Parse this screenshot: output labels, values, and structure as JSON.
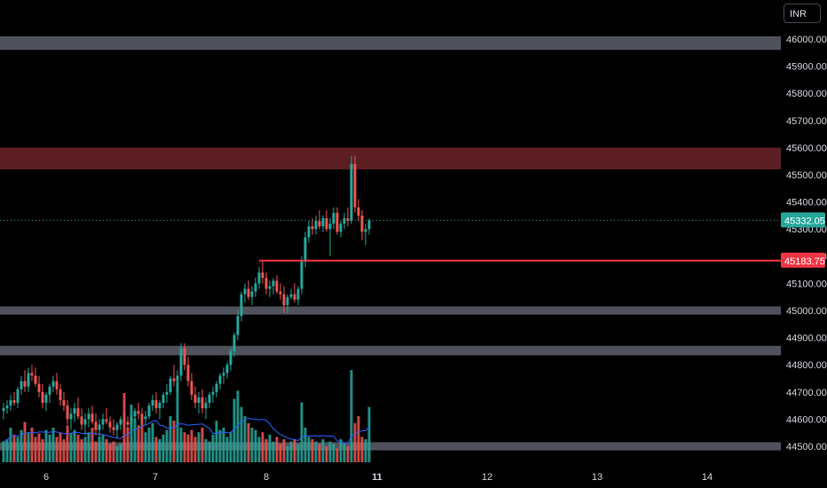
{
  "currency_button": "INR",
  "colors": {
    "background": "#000000",
    "up": "#26a69a",
    "down": "#ef5350",
    "volume_up": "#26a69a",
    "volume_down": "#ef5350",
    "ma_line": "#2962ff",
    "zone_grey": "#5d606b",
    "zone_red": "#5c1e22",
    "level_line": "#f23645",
    "axis_text": "#d1d4dc"
  },
  "chart_data": {
    "type": "candlestick",
    "ylim": [
      44450,
      46060
    ],
    "y_ticks": [
      "46000.00",
      "45900.00",
      "45800.00",
      "45700.00",
      "45600.00",
      "45500.00",
      "45400.00",
      "45300.00",
      "45200.00",
      "45100.00",
      "45000.00",
      "44900.00",
      "44800.00",
      "44700.00",
      "44600.00",
      "44500.00"
    ],
    "x_ticks": [
      "6",
      "7",
      "8",
      "11",
      "12",
      "13",
      "14"
    ],
    "last_price": "45332.05",
    "level_price": "45183.75",
    "zones": [
      {
        "color": "grey",
        "from": 45960,
        "to": 46010
      },
      {
        "color": "red",
        "from": 45520,
        "to": 45600
      },
      {
        "color": "grey",
        "from": 44985,
        "to": 45015
      },
      {
        "color": "grey",
        "from": 44835,
        "to": 44870
      },
      {
        "color": "grey",
        "from": 44485,
        "to": 44515
      }
    ],
    "level_line": {
      "price": 45183.75,
      "start_index": 72
    },
    "candles": [
      [
        44630,
        44660,
        44600,
        44640
      ],
      [
        44640,
        44670,
        44620,
        44650
      ],
      [
        44650,
        44690,
        44630,
        44670
      ],
      [
        44670,
        44700,
        44650,
        44660
      ],
      [
        44660,
        44720,
        44640,
        44710
      ],
      [
        44710,
        44760,
        44690,
        44740
      ],
      [
        44740,
        44780,
        44700,
        44720
      ],
      [
        44720,
        44790,
        44700,
        44770
      ],
      [
        44770,
        44800,
        44740,
        44760
      ],
      [
        44760,
        44790,
        44720,
        44730
      ],
      [
        44730,
        44760,
        44680,
        44700
      ],
      [
        44700,
        44730,
        44640,
        44660
      ],
      [
        44660,
        44700,
        44630,
        44690
      ],
      [
        44690,
        44730,
        44660,
        44720
      ],
      [
        44720,
        44760,
        44700,
        44740
      ],
      [
        44740,
        44770,
        44690,
        44710
      ],
      [
        44710,
        44730,
        44650,
        44670
      ],
      [
        44670,
        44700,
        44630,
        44650
      ],
      [
        44650,
        44670,
        44580,
        44600
      ],
      [
        44600,
        44640,
        44560,
        44620
      ],
      [
        44620,
        44660,
        44590,
        44640
      ],
      [
        44640,
        44680,
        44600,
        44610
      ],
      [
        44610,
        44640,
        44560,
        44580
      ],
      [
        44580,
        44620,
        44540,
        44600
      ],
      [
        44600,
        44640,
        44570,
        44620
      ],
      [
        44620,
        44650,
        44580,
        44590
      ],
      [
        44590,
        44620,
        44540,
        44560
      ],
      [
        44560,
        44600,
        44530,
        44580
      ],
      [
        44580,
        44620,
        44560,
        44600
      ],
      [
        44600,
        44640,
        44580,
        44590
      ],
      [
        44590,
        44610,
        44550,
        44570
      ],
      [
        44570,
        44600,
        44540,
        44560
      ],
      [
        44560,
        44590,
        44530,
        44580
      ],
      [
        44580,
        44610,
        44560,
        44600
      ],
      [
        44600,
        44620,
        44570,
        44590
      ],
      [
        44590,
        44610,
        44560,
        44580
      ],
      [
        44580,
        44620,
        44560,
        44610
      ],
      [
        44610,
        44640,
        44590,
        44630
      ],
      [
        44630,
        44660,
        44600,
        44620
      ],
      [
        44620,
        44640,
        44580,
        44600
      ],
      [
        44600,
        44630,
        44580,
        44610
      ],
      [
        44610,
        44660,
        44600,
        44650
      ],
      [
        44650,
        44690,
        44630,
        44670
      ],
      [
        44670,
        44700,
        44620,
        44640
      ],
      [
        44640,
        44670,
        44600,
        44660
      ],
      [
        44660,
        44700,
        44640,
        44690
      ],
      [
        44690,
        44730,
        44660,
        44700
      ],
      [
        44700,
        44760,
        44690,
        44750
      ],
      [
        44750,
        44800,
        44720,
        44740
      ],
      [
        44740,
        44780,
        44700,
        44760
      ],
      [
        44760,
        44880,
        44740,
        44860
      ],
      [
        44860,
        44880,
        44780,
        44800
      ],
      [
        44800,
        44830,
        44720,
        44740
      ],
      [
        44740,
        44770,
        44670,
        44690
      ],
      [
        44690,
        44720,
        44640,
        44660
      ],
      [
        44660,
        44700,
        44620,
        44680
      ],
      [
        44680,
        44710,
        44620,
        44640
      ],
      [
        44640,
        44680,
        44600,
        44660
      ],
      [
        44660,
        44700,
        44640,
        44690
      ],
      [
        44690,
        44720,
        44660,
        44700
      ],
      [
        44700,
        44740,
        44680,
        44730
      ],
      [
        44730,
        44770,
        44710,
        44760
      ],
      [
        44760,
        44790,
        44730,
        44770
      ],
      [
        44770,
        44810,
        44750,
        44800
      ],
      [
        44800,
        44860,
        44780,
        44850
      ],
      [
        44850,
        44920,
        44830,
        44910
      ],
      [
        44910,
        45000,
        44890,
        44980
      ],
      [
        44980,
        45070,
        44960,
        45060
      ],
      [
        45060,
        45100,
        45030,
        45080
      ],
      [
        45080,
        45110,
        45040,
        45050
      ],
      [
        45050,
        45090,
        45020,
        45070
      ],
      [
        45070,
        45120,
        45050,
        45100
      ],
      [
        45100,
        45160,
        45080,
        45140
      ],
      [
        45140,
        45180,
        45100,
        45120
      ],
      [
        45120,
        45140,
        45060,
        45080
      ],
      [
        45080,
        45110,
        45050,
        45090
      ],
      [
        45090,
        45120,
        45060,
        45110
      ],
      [
        45110,
        45130,
        45060,
        45070
      ],
      [
        45070,
        45100,
        45040,
        45060
      ],
      [
        45060,
        45090,
        44990,
        45020
      ],
      [
        45020,
        45060,
        44990,
        45050
      ],
      [
        45050,
        45080,
        45040,
        45060
      ],
      [
        45060,
        45100,
        45030,
        45040
      ],
      [
        45040,
        45090,
        45020,
        45080
      ],
      [
        45080,
        45200,
        45060,
        45180
      ],
      [
        45180,
        45290,
        45160,
        45270
      ],
      [
        45270,
        45330,
        45250,
        45310
      ],
      [
        45310,
        45340,
        45280,
        45300
      ],
      [
        45300,
        45350,
        45280,
        45330
      ],
      [
        45330,
        45370,
        45300,
        45310
      ],
      [
        45310,
        45350,
        45290,
        45340
      ],
      [
        45340,
        45370,
        45290,
        45300
      ],
      [
        45300,
        45340,
        45200,
        45320
      ],
      [
        45320,
        45380,
        45300,
        45360
      ],
      [
        45360,
        45380,
        45280,
        45290
      ],
      [
        45290,
        45330,
        45270,
        45320
      ],
      [
        45320,
        45360,
        45300,
        45340
      ],
      [
        45340,
        45380,
        45310,
        45330
      ],
      [
        45330,
        45570,
        45320,
        45540
      ],
      [
        45540,
        45570,
        45360,
        45380
      ],
      [
        45380,
        45410,
        45330,
        45350
      ],
      [
        45350,
        45370,
        45260,
        45290
      ],
      [
        45290,
        45320,
        45240,
        45300
      ],
      [
        45300,
        45340,
        45280,
        45332
      ]
    ],
    "volumes": [
      0.18,
      0.2,
      0.3,
      0.24,
      0.22,
      0.28,
      0.35,
      0.26,
      0.3,
      0.22,
      0.25,
      0.2,
      0.28,
      0.24,
      0.3,
      0.22,
      0.26,
      0.2,
      0.32,
      0.25,
      0.28,
      0.24,
      0.2,
      0.22,
      0.26,
      0.3,
      0.18,
      0.22,
      0.24,
      0.2,
      0.16,
      0.18,
      0.14,
      0.16,
      0.6,
      0.3,
      0.5,
      0.38,
      0.32,
      0.4,
      0.26,
      0.3,
      0.34,
      0.22,
      0.2,
      0.24,
      0.28,
      0.4,
      0.36,
      0.7,
      0.3,
      0.26,
      0.24,
      0.28,
      0.22,
      0.26,
      0.3,
      0.2,
      0.18,
      0.24,
      0.36,
      0.28,
      0.3,
      0.22,
      0.26,
      0.55,
      0.62,
      0.48,
      0.4,
      0.34,
      0.3,
      0.28,
      0.22,
      0.26,
      0.2,
      0.24,
      0.18,
      0.22,
      0.16,
      0.2,
      0.14,
      0.18,
      0.2,
      0.16,
      0.52,
      0.3,
      0.22,
      0.2,
      0.18,
      0.16,
      0.2,
      0.14,
      0.18,
      0.16,
      0.12,
      0.2,
      0.16,
      0.14,
      0.8,
      0.34,
      0.4,
      0.22,
      0.2,
      0.48
    ]
  }
}
